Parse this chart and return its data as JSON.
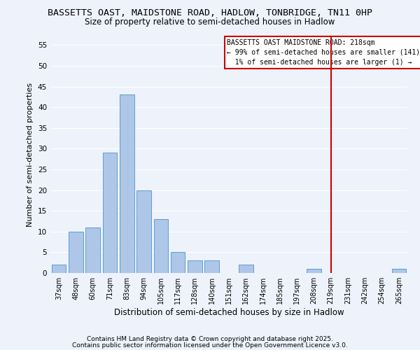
{
  "title": "BASSETTS OAST, MAIDSTONE ROAD, HADLOW, TONBRIDGE, TN11 0HP",
  "subtitle": "Size of property relative to semi-detached houses in Hadlow",
  "xlabel": "Distribution of semi-detached houses by size in Hadlow",
  "ylabel": "Number of semi-detached properties",
  "bar_labels": [
    "37sqm",
    "48sqm",
    "60sqm",
    "71sqm",
    "83sqm",
    "94sqm",
    "105sqm",
    "117sqm",
    "128sqm",
    "140sqm",
    "151sqm",
    "162sqm",
    "174sqm",
    "185sqm",
    "197sqm",
    "208sqm",
    "219sqm",
    "231sqm",
    "242sqm",
    "254sqm",
    "265sqm"
  ],
  "bar_values": [
    2,
    10,
    11,
    29,
    43,
    20,
    13,
    5,
    3,
    3,
    0,
    2,
    0,
    0,
    0,
    1,
    0,
    0,
    0,
    0,
    1
  ],
  "bar_color": "#aec6e8",
  "bar_edge_color": "#5a9fd4",
  "vline_color": "#cc0000",
  "vline_index": 16.5,
  "ylim": [
    0,
    57
  ],
  "yticks": [
    0,
    5,
    10,
    15,
    20,
    25,
    30,
    35,
    40,
    45,
    50,
    55
  ],
  "annotation_title": "BASSETTS OAST MAIDSTONE ROAD: 218sqm",
  "annotation_line1": "← 99% of semi-detached houses are smaller (141)",
  "annotation_line2": "  1% of semi-detached houses are larger (1) →",
  "annotation_box_color": "#ffffff",
  "annotation_box_edge": "#cc0000",
  "footnote1": "Contains HM Land Registry data © Crown copyright and database right 2025.",
  "footnote2": "Contains public sector information licensed under the Open Government Licence v3.0.",
  "bg_color": "#eef2fb",
  "grid_color": "#ffffff",
  "title_fontsize": 9.5,
  "subtitle_fontsize": 8.5,
  "xlabel_fontsize": 8.5,
  "ylabel_fontsize": 8,
  "footnote_fontsize": 6.5
}
